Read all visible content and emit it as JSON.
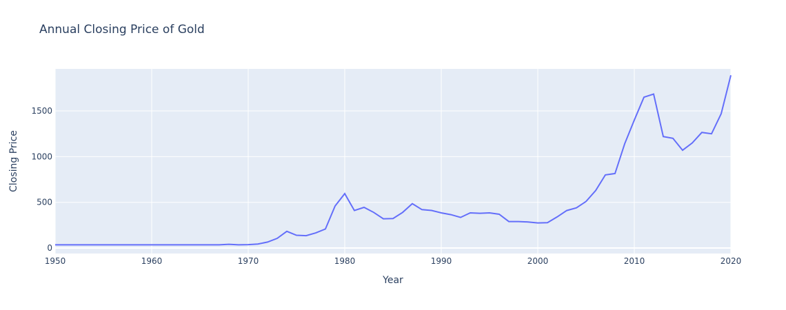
{
  "chart_data": {
    "type": "line",
    "title": "Annual Closing Price of Gold",
    "xlabel": "Year",
    "ylabel": "Closing Price",
    "xlim": [
      1950,
      2020
    ],
    "ylim": [
      -60,
      1960
    ],
    "xticks": [
      1950,
      1960,
      1970,
      1980,
      1990,
      2000,
      2010,
      2020
    ],
    "yticks": [
      0,
      500,
      1000,
      1500
    ],
    "ytick_labels": [
      "0",
      "500",
      "1000",
      "1500"
    ],
    "grid": true,
    "colors": {
      "plot_bg": "#e5ecf6",
      "line": "#636efa",
      "grid": "#ffffff",
      "text": "#2a3f5f"
    },
    "series": [
      {
        "x": [
          1950,
          1951,
          1952,
          1953,
          1954,
          1955,
          1956,
          1957,
          1958,
          1959,
          1960,
          1961,
          1962,
          1963,
          1964,
          1965,
          1966,
          1967,
          1968,
          1969,
          1970,
          1971,
          1972,
          1973,
          1974,
          1975,
          1976,
          1977,
          1978,
          1979,
          1980,
          1981,
          1982,
          1983,
          1984,
          1985,
          1986,
          1987,
          1988,
          1989,
          1990,
          1991,
          1992,
          1993,
          1994,
          1995,
          1996,
          1997,
          1998,
          1999,
          2000,
          2001,
          2002,
          2003,
          2004,
          2005,
          2006,
          2007,
          2008,
          2009,
          2010,
          2011,
          2012,
          2013,
          2014,
          2015,
          2016,
          2017,
          2018,
          2019,
          2020
        ],
        "values": [
          35,
          35,
          35,
          35,
          35,
          35,
          35,
          35,
          35,
          35,
          35,
          35,
          35,
          35,
          35,
          35,
          35,
          35,
          41,
          35,
          37,
          44,
          65,
          106,
          183,
          140,
          135,
          165,
          208,
          460,
          595,
          410,
          445,
          390,
          320,
          323,
          390,
          486,
          420,
          411,
          385,
          365,
          335,
          385,
          380,
          385,
          370,
          290,
          290,
          285,
          275,
          278,
          340,
          410,
          440,
          510,
          630,
          800,
          815,
          1140,
          1400,
          1650,
          1685,
          1220,
          1200,
          1070,
          1150,
          1265,
          1250,
          1470,
          1890
        ]
      }
    ]
  }
}
